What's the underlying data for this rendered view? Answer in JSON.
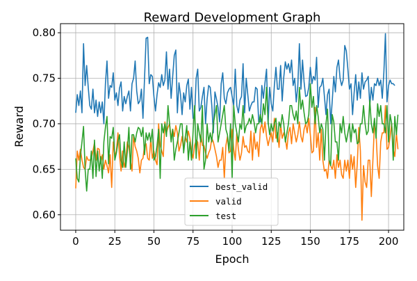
{
  "chart_data": {
    "type": "line",
    "title": "Reward Development Graph",
    "xlabel": "Epoch",
    "ylabel": "Reward",
    "xlim": [
      -9.75,
      209.75
    ],
    "ylim": [
      0.583,
      0.81
    ],
    "xticks": [
      0,
      25,
      50,
      75,
      100,
      125,
      150,
      175,
      200
    ],
    "yticks": [
      0.6,
      0.65,
      0.7,
      0.75,
      0.8
    ],
    "xtick_labels": [
      "0",
      "25",
      "50",
      "75",
      "100",
      "125",
      "150",
      "175",
      "200"
    ],
    "ytick_labels": [
      "0.60",
      "0.65",
      "0.70",
      "0.75",
      "0.80"
    ],
    "grid": true,
    "legend_position": "bottom-center",
    "colors": {
      "best_valid": "#1f77b4",
      "valid": "#ff7f0e",
      "test": "#2ca02c"
    },
    "x_start": 0,
    "x_step": 1,
    "series": [
      {
        "name": "best_valid",
        "color": "#1f77b4",
        "values": [
          0.712,
          0.732,
          0.72,
          0.736,
          0.712,
          0.788,
          0.742,
          0.764,
          0.74,
          0.72,
          0.716,
          0.738,
          0.712,
          0.726,
          0.708,
          0.724,
          0.712,
          0.724,
          0.7,
          0.744,
          0.769,
          0.728,
          0.742,
          0.74,
          0.756,
          0.726,
          0.734,
          0.72,
          0.739,
          0.746,
          0.714,
          0.73,
          0.722,
          0.73,
          0.736,
          0.714,
          0.744,
          0.75,
          0.769,
          0.736,
          0.722,
          0.725,
          0.738,
          0.706,
          0.75,
          0.794,
          0.795,
          0.744,
          0.754,
          0.752,
          0.73,
          0.714,
          0.732,
          0.745,
          0.74,
          0.754,
          0.742,
          0.748,
          0.779,
          0.738,
          0.76,
          0.728,
          0.752,
          0.775,
          0.781,
          0.712,
          0.745,
          0.732,
          0.71,
          0.734,
          0.724,
          0.742,
          0.749,
          0.716,
          0.74,
          0.706,
          0.708,
          0.75,
          0.76,
          0.714,
          0.718,
          0.73,
          0.74,
          0.7,
          0.727,
          0.742,
          0.74,
          0.72,
          0.69,
          0.735,
          0.727,
          0.718,
          0.702,
          0.744,
          0.756,
          0.728,
          0.722,
          0.734,
          0.738,
          0.74,
          0.73,
          0.72,
          0.76,
          0.72,
          0.712,
          0.726,
          0.73,
          0.766,
          0.712,
          0.75,
          0.732,
          0.714,
          0.72,
          0.724,
          0.724,
          0.74,
          0.738,
          0.702,
          0.702,
          0.742,
          0.728,
          0.745,
          0.76,
          0.7,
          0.74,
          0.722,
          0.714,
          0.742,
          0.762,
          0.738,
          0.738,
          0.764,
          0.725,
          0.751,
          0.768,
          0.76,
          0.766,
          0.756,
          0.77,
          0.742,
          0.75,
          0.724,
          0.742,
          0.788,
          0.738,
          0.77,
          0.746,
          0.73,
          0.731,
          0.74,
          0.762,
          0.744,
          0.752,
          0.748,
          0.773,
          0.718,
          0.74,
          0.742,
          0.75,
          0.73,
          0.71,
          0.732,
          0.738,
          0.7,
          0.725,
          0.752,
          0.735,
          0.762,
          0.77,
          0.75,
          0.742,
          0.748,
          0.786,
          0.78,
          0.76,
          0.738,
          0.744,
          0.71,
          0.734,
          0.754,
          0.726,
          0.746,
          0.728,
          0.756,
          0.738,
          0.746,
          0.748,
          0.752,
          0.72,
          0.74,
          0.726,
          0.744,
          0.742,
          0.75,
          0.742,
          0.748,
          0.728,
          0.756,
          0.799,
          0.724,
          0.742,
          0.748,
          0.744,
          0.744,
          0.742
        ]
      },
      {
        "name": "valid",
        "color": "#ff7f0e",
        "values": [
          0.629,
          0.67,
          0.66,
          0.672,
          0.66,
          0.652,
          0.65,
          0.664,
          0.66,
          0.66,
          0.662,
          0.67,
          0.679,
          0.66,
          0.673,
          0.672,
          0.656,
          0.666,
          0.65,
          0.66,
          0.654,
          0.646,
          0.666,
          0.63,
          0.68,
          0.665,
          0.67,
          0.69,
          0.665,
          0.648,
          0.67,
          0.652,
          0.66,
          0.68,
          0.674,
          0.66,
          0.648,
          0.687,
          0.675,
          0.67,
          0.662,
          0.646,
          0.66,
          0.662,
          0.676,
          0.678,
          0.662,
          0.66,
          0.684,
          0.662,
          0.67,
          0.66,
          0.655,
          0.7,
          0.676,
          0.67,
          0.664,
          0.702,
          0.69,
          0.696,
          0.7,
          0.684,
          0.694,
          0.686,
          0.698,
          0.69,
          0.67,
          0.676,
          0.686,
          0.672,
          0.686,
          0.68,
          0.692,
          0.684,
          0.67,
          0.662,
          0.676,
          0.682,
          0.68,
          0.66,
          0.688,
          0.676,
          0.676,
          0.668,
          0.662,
          0.668,
          0.672,
          0.684,
          0.68,
          0.672,
          0.664,
          0.652,
          0.66,
          0.66,
          0.674,
          0.64,
          0.676,
          0.686,
          0.668,
          0.67,
          0.694,
          0.672,
          0.66,
          0.69,
          0.672,
          0.66,
          0.668,
          0.686,
          0.674,
          0.676,
          0.67,
          0.668,
          0.692,
          0.66,
          0.69,
          0.672,
          0.68,
          0.664,
          0.694,
          0.7,
          0.69,
          0.702,
          0.686,
          0.676,
          0.684,
          0.69,
          0.68,
          0.706,
          0.684,
          0.69,
          0.674,
          0.7,
          0.684,
          0.69,
          0.684,
          0.672,
          0.69,
          0.696,
          0.678,
          0.7,
          0.69,
          0.68,
          0.688,
          0.702,
          0.686,
          0.68,
          0.694,
          0.7,
          0.69,
          0.706,
          0.688,
          0.668,
          0.67,
          0.718,
          0.674,
          0.69,
          0.66,
          0.694,
          0.66,
          0.648,
          0.65,
          0.64,
          0.66,
          0.654,
          0.65,
          0.66,
          0.64,
          0.666,
          0.652,
          0.66,
          0.644,
          0.64,
          0.66,
          0.648,
          0.66,
          0.64,
          0.666,
          0.65,
          0.664,
          0.63,
          0.656,
          0.696,
          0.67,
          0.594,
          0.654,
          0.636,
          0.63,
          0.66,
          0.66,
          0.62,
          0.66,
          0.7,
          0.69,
          0.654,
          0.64,
          0.68,
          0.69,
          0.69,
          0.72,
          0.672,
          0.674,
          0.686,
          0.7,
          0.672,
          0.664,
          0.69,
          0.672
        ]
      },
      {
        "name": "test",
        "color": "#2ca02c",
        "values": [
          0.662,
          0.64,
          0.636,
          0.664,
          0.68,
          0.697,
          0.65,
          0.626,
          0.65,
          0.65,
          0.67,
          0.64,
          0.682,
          0.642,
          0.67,
          0.648,
          0.664,
          0.64,
          0.68,
          0.696,
          0.708,
          0.656,
          0.686,
          0.684,
          0.696,
          0.66,
          0.668,
          0.68,
          0.688,
          0.66,
          0.652,
          0.68,
          0.652,
          0.67,
          0.696,
          0.65,
          0.688,
          0.688,
          0.68,
          0.69,
          0.696,
          0.694,
          0.686,
          0.696,
          0.666,
          0.69,
          0.682,
          0.69,
          0.68,
          0.694,
          0.66,
          0.664,
          0.676,
          0.694,
          0.64,
          0.7,
          0.69,
          0.7,
          0.686,
          0.72,
          0.7,
          0.68,
          0.694,
          0.66,
          0.672,
          0.68,
          0.69,
          0.7,
          0.7,
          0.668,
          0.684,
          0.698,
          0.66,
          0.68,
          0.66,
          0.69,
          0.72,
          0.662,
          0.7,
          0.69,
          0.68,
          0.72,
          0.65,
          0.66,
          0.7,
          0.68,
          0.69,
          0.68,
          0.7,
          0.71,
          0.72,
          0.68,
          0.69,
          0.7,
          0.71,
          0.72,
          0.694,
          0.688,
          0.67,
          0.7,
          0.64,
          0.72,
          0.7,
          0.69,
          0.68,
          0.7,
          0.694,
          0.72,
          0.69,
          0.698,
          0.7,
          0.706,
          0.7,
          0.71,
          0.702,
          0.69,
          0.7,
          0.7,
          0.71,
          0.7,
          0.722,
          0.71,
          0.74,
          0.702,
          0.688,
          0.7,
          0.692,
          0.7,
          0.706,
          0.68,
          0.702,
          0.696,
          0.71,
          0.7,
          0.68,
          0.69,
          0.7,
          0.72,
          0.72,
          0.71,
          0.704,
          0.714,
          0.7,
          0.74,
          0.716,
          0.726,
          0.712,
          0.7,
          0.702,
          0.71,
          0.744,
          0.718,
          0.73,
          0.7,
          0.72,
          0.708,
          0.69,
          0.7,
          0.694,
          0.66,
          0.7,
          0.716,
          0.66,
          0.654,
          0.71,
          0.702,
          0.68,
          0.68,
          0.66,
          0.7,
          0.69,
          0.708,
          0.69,
          0.68,
          0.69,
          0.7,
          0.68,
          0.7,
          0.69,
          0.694,
          0.678,
          0.68,
          0.7,
          0.7,
          0.72,
          0.7,
          0.688,
          0.692,
          0.726,
          0.7,
          0.69,
          0.706,
          0.684,
          0.722,
          0.708,
          0.72,
          0.7,
          0.7,
          0.69,
          0.72,
          0.68,
          0.71,
          0.7,
          0.66,
          0.708,
          0.688,
          0.71
        ]
      }
    ]
  }
}
